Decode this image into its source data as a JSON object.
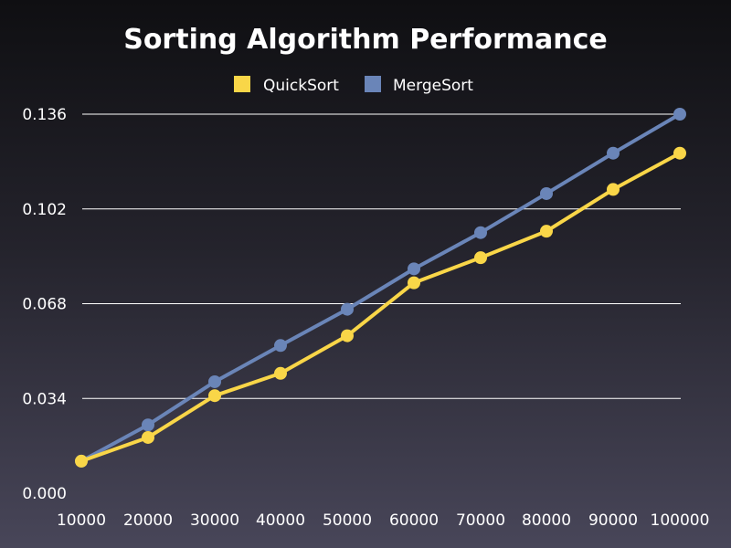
{
  "chart_data": {
    "type": "line",
    "title": "Sorting Algorithm Performance",
    "xlabel": "",
    "ylabel": "",
    "x": [
      10000,
      20000,
      30000,
      40000,
      50000,
      60000,
      70000,
      80000,
      90000,
      100000
    ],
    "x_tick_labels": [
      "10000",
      "20000",
      "30000",
      "40000",
      "50000",
      "60000",
      "70000",
      "80000",
      "90000",
      "100000"
    ],
    "y_tick_labels": [
      "0.000",
      "0.034",
      "0.068",
      "0.102",
      "0.136"
    ],
    "y_ticks": [
      0,
      0.034,
      0.068,
      0.102,
      0.136
    ],
    "ylim": [
      0,
      0.136
    ],
    "grid": true,
    "legend_position": "top",
    "series": [
      {
        "name": "QuickSort",
        "color": "#f9d648",
        "values": [
          0.0115,
          0.02,
          0.035,
          0.043,
          0.0565,
          0.0755,
          0.0845,
          0.094,
          0.109,
          0.122
        ]
      },
      {
        "name": "MergeSort",
        "color": "#6a85b8",
        "values": [
          0.0115,
          0.0245,
          0.04,
          0.053,
          0.066,
          0.0805,
          0.0935,
          0.1075,
          0.122,
          0.136
        ]
      }
    ]
  }
}
